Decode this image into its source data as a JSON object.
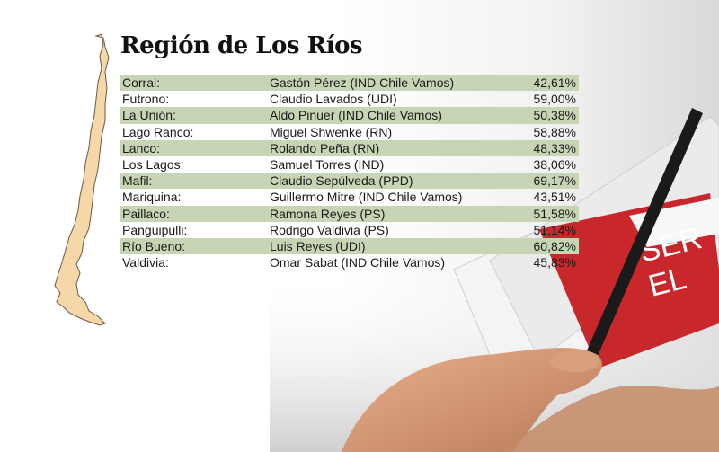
{
  "title": "Región de Los Ríos",
  "rows": [
    {
      "commune": "Corral:",
      "candidate": "Gastón Pérez (IND Chile Vamos)",
      "percent": "42,61%"
    },
    {
      "commune": "Futrono:",
      "candidate": "Claudio Lavados (UDI)",
      "percent": "59,00%"
    },
    {
      "commune": "La Unión:",
      "candidate": "Aldo Pinuer (IND Chile Vamos)",
      "percent": "50,38%"
    },
    {
      "commune": "Lago Ranco:",
      "candidate": "Miguel Shwenke (RN)",
      "percent": "58,88%"
    },
    {
      "commune": "Lanco:",
      "candidate": "Rolando Peña (RN)",
      "percent": "48,33%"
    },
    {
      "commune": "Los Lagos:",
      "candidate": "Samuel Torres (IND)",
      "percent": "38,06%"
    },
    {
      "commune": "Mafil:",
      "candidate": "Claudio Sepúlveda (PPD)",
      "percent": "69,17%"
    },
    {
      "commune": "Mariquina:",
      "candidate": "Guillermo Mitre (IND Chile Vamos)",
      "percent": "43,51%"
    },
    {
      "commune": "Paillaco:",
      "candidate": "Ramona Reyes (PS)",
      "percent": "51,58%"
    },
    {
      "commune": "Panguipulli:",
      "candidate": "Rodrigo Valdivia (PS)",
      "percent": "51,14%"
    },
    {
      "commune": "Río Bueno:",
      "candidate": "Luis Reyes (UDI)",
      "percent": "60,82%"
    },
    {
      "commune": "Valdivia:",
      "candidate": "Omar Sabat (IND Chile Vamos)",
      "percent": "45,83%"
    }
  ],
  "photo": {
    "envelope_text": "SER VEL"
  },
  "colors": {
    "row_shade": "#c7d5b4",
    "map_fill": "#f6d7a8",
    "envelope_red": "#c8282b"
  }
}
